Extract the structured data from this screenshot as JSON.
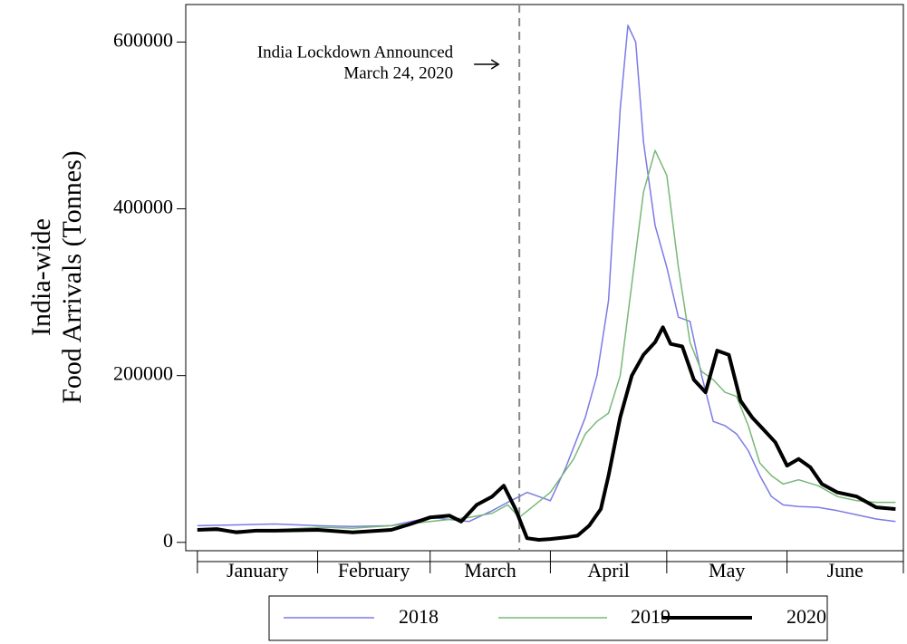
{
  "chart_data": {
    "type": "line",
    "y_label": [
      "India-wide",
      "Food Arrivals (Tonnes)"
    ],
    "categories": [
      "January",
      "February",
      "March",
      "April",
      "May",
      "June"
    ],
    "xticks": [
      0,
      31,
      60,
      91,
      121,
      152,
      182
    ],
    "xlim": [
      -3,
      182
    ],
    "ylim": [
      -10000,
      645000
    ],
    "yticks": [
      0,
      200000,
      400000,
      600000
    ],
    "annotation": {
      "lines": [
        "India Lockdown Announced",
        "March 24, 2020"
      ],
      "x": 83
    },
    "series": [
      {
        "name": "2018",
        "color": "#7b7be6",
        "width": 1.5,
        "x": [
          0,
          10,
          20,
          31,
          40,
          50,
          60,
          70,
          76,
          80,
          83,
          85,
          88,
          91,
          95,
          100,
          103,
          106,
          109,
          111,
          113,
          115,
          118,
          121,
          124,
          127,
          130,
          133,
          136,
          139,
          142,
          145,
          148,
          151,
          155,
          160,
          165,
          170,
          175,
          180
        ],
        "values": [
          20000,
          21000,
          22000,
          20000,
          19000,
          20000,
          30000,
          25000,
          38000,
          48000,
          55000,
          60000,
          55000,
          50000,
          90000,
          150000,
          200000,
          290000,
          520000,
          620000,
          600000,
          480000,
          380000,
          330000,
          270000,
          265000,
          200000,
          145000,
          140000,
          130000,
          110000,
          80000,
          55000,
          45000,
          43000,
          42000,
          38000,
          33000,
          28000,
          25000
        ]
      },
      {
        "name": "2019",
        "color": "#78b878",
        "width": 1.5,
        "x": [
          0,
          10,
          20,
          31,
          40,
          50,
          60,
          70,
          76,
          80,
          83,
          87,
          91,
          94,
          97,
          100,
          103,
          106,
          109,
          112,
          115,
          118,
          121,
          124,
          127,
          130,
          133,
          136,
          139,
          142,
          145,
          148,
          151,
          155,
          160,
          165,
          170,
          175,
          180
        ],
        "values": [
          14000,
          14000,
          15000,
          18000,
          17000,
          20000,
          25000,
          30000,
          35000,
          45000,
          30000,
          45000,
          60000,
          80000,
          100000,
          130000,
          145000,
          155000,
          200000,
          310000,
          420000,
          470000,
          440000,
          330000,
          240000,
          205000,
          195000,
          180000,
          175000,
          140000,
          95000,
          80000,
          70000,
          75000,
          68000,
          55000,
          50000,
          48000,
          48000
        ]
      },
      {
        "name": "2020",
        "color": "#000000",
        "width": 4,
        "x": [
          0,
          5,
          10,
          15,
          20,
          31,
          40,
          50,
          55,
          60,
          65,
          68,
          72,
          76,
          79,
          82,
          85,
          88,
          91,
          95,
          98,
          101,
          104,
          106,
          109,
          112,
          115,
          118,
          120,
          122,
          125,
          128,
          131,
          134,
          137,
          140,
          143,
          146,
          149,
          152,
          155,
          158,
          161,
          165,
          170,
          175,
          180
        ],
        "values": [
          15000,
          16000,
          12000,
          14000,
          14000,
          15000,
          12000,
          15000,
          22000,
          30000,
          32000,
          25000,
          45000,
          55000,
          68000,
          40000,
          5000,
          3000,
          4000,
          6000,
          8000,
          20000,
          40000,
          80000,
          150000,
          200000,
          225000,
          240000,
          258000,
          238000,
          235000,
          195000,
          180000,
          230000,
          225000,
          170000,
          150000,
          135000,
          120000,
          92000,
          100000,
          90000,
          70000,
          60000,
          55000,
          42000,
          40000
        ]
      }
    ]
  }
}
